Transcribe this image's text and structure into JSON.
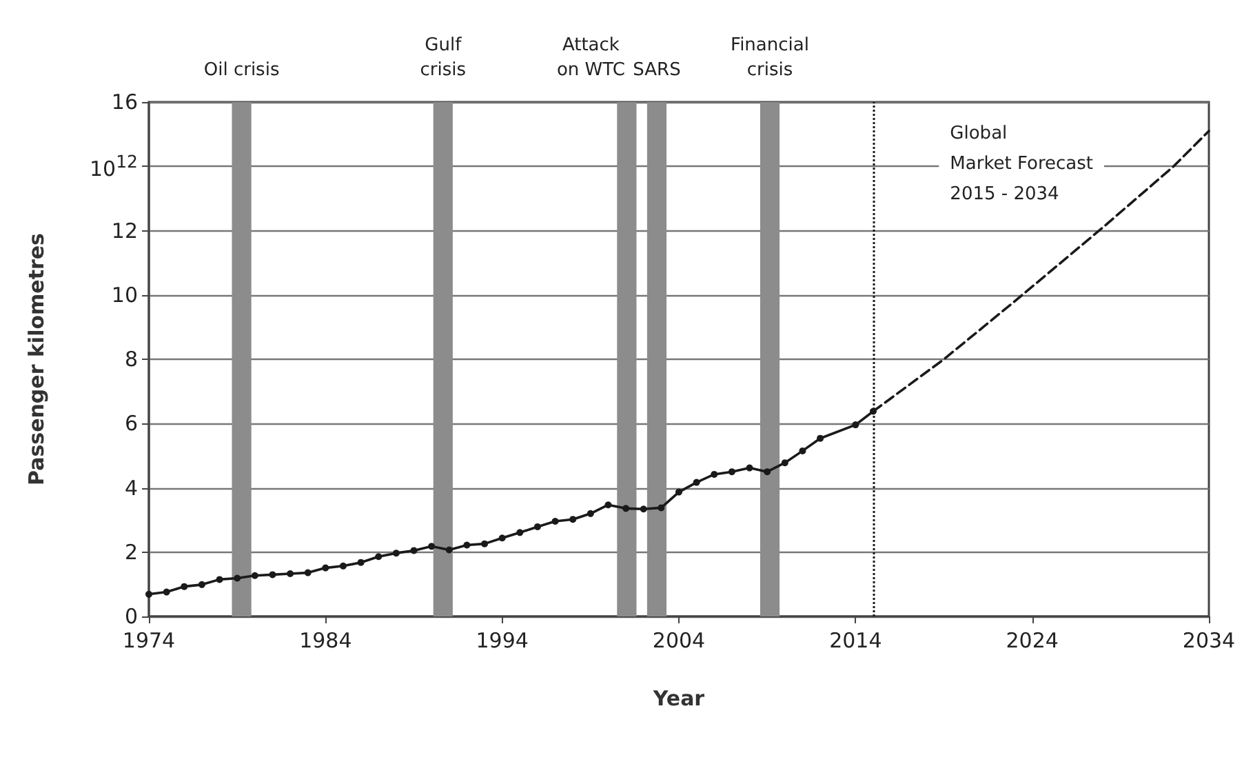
{
  "chart_data": {
    "type": "line",
    "xlabel": "Year",
    "ylabel": "Passenger kilometres",
    "xlim": [
      1974,
      2034
    ],
    "xticks": [
      1974,
      1984,
      1994,
      2004,
      2014,
      2024,
      2034
    ],
    "ylim": [
      0,
      16
    ],
    "yticks": [
      0,
      2,
      4,
      6,
      8,
      10,
      12,
      {
        "value": 14,
        "label": null
      },
      16
    ],
    "grid": "y",
    "series": [
      {
        "color": "#1a1a1a",
        "marker": "circle",
        "line_style": "solid",
        "x": [
          1974,
          1975,
          1976,
          1977,
          1978,
          1979,
          1980,
          1981,
          1982,
          1983,
          1984,
          1985,
          1986,
          1987,
          1988,
          1989,
          1990,
          1991,
          1992,
          1993,
          1994,
          1995,
          1996,
          1997,
          1998,
          1999,
          2000,
          2001,
          2002,
          2003,
          2004,
          2005,
          2006,
          2007,
          2008,
          2009,
          2010,
          2011,
          2012,
          2014,
          2015
        ],
        "values": [
          0.69,
          0.76,
          0.93,
          0.99,
          1.15,
          1.19,
          1.27,
          1.3,
          1.33,
          1.36,
          1.51,
          1.57,
          1.68,
          1.86,
          1.97,
          2.05,
          2.18,
          2.07,
          2.22,
          2.26,
          2.44,
          2.61,
          2.79,
          2.96,
          3.02,
          3.2,
          3.47,
          3.36,
          3.34,
          3.38,
          3.87,
          4.17,
          4.42,
          4.5,
          4.62,
          4.5,
          4.78,
          5.15,
          5.54,
          5.96,
          6.38
        ]
      },
      {
        "color": "#1a1a1a",
        "marker": "none",
        "line_style": "dashed",
        "x": [
          2015,
          2019,
          2023,
          2028,
          2032,
          2034
        ],
        "values": [
          6.38,
          8.0,
          9.8,
          12.1,
          14.0,
          15.1
        ]
      }
    ],
    "ref_lines": [
      {
        "axis": "x",
        "value": 2015,
        "line_style": "dotted",
        "color": "#1a1a1a"
      }
    ],
    "bands": [
      {
        "axis": "x",
        "from": 1978.7,
        "to": 1979.8,
        "label": "Oil crisis",
        "color": "#8c8c8c"
      },
      {
        "axis": "x",
        "from": 1990.1,
        "to": 1991.2,
        "label": "Gulf\ncrisis",
        "color": "#8c8c8c"
      },
      {
        "axis": "x",
        "from": 2000.5,
        "to": 2001.6,
        "label": "Attack\non WTC",
        "color": "#8c8c8c"
      },
      {
        "axis": "x",
        "from": 2002.2,
        "to": 2003.3,
        "label": "SARS",
        "color": "#8c8c8c"
      },
      {
        "axis": "x",
        "from": 2008.6,
        "to": 2009.7,
        "label": "Financial\ncrisis",
        "color": "#8c8c8c"
      }
    ],
    "annotations": [
      "Global\nMarket Forecast\n2015 - 2034",
      "10$^{12}$"
    ]
  }
}
